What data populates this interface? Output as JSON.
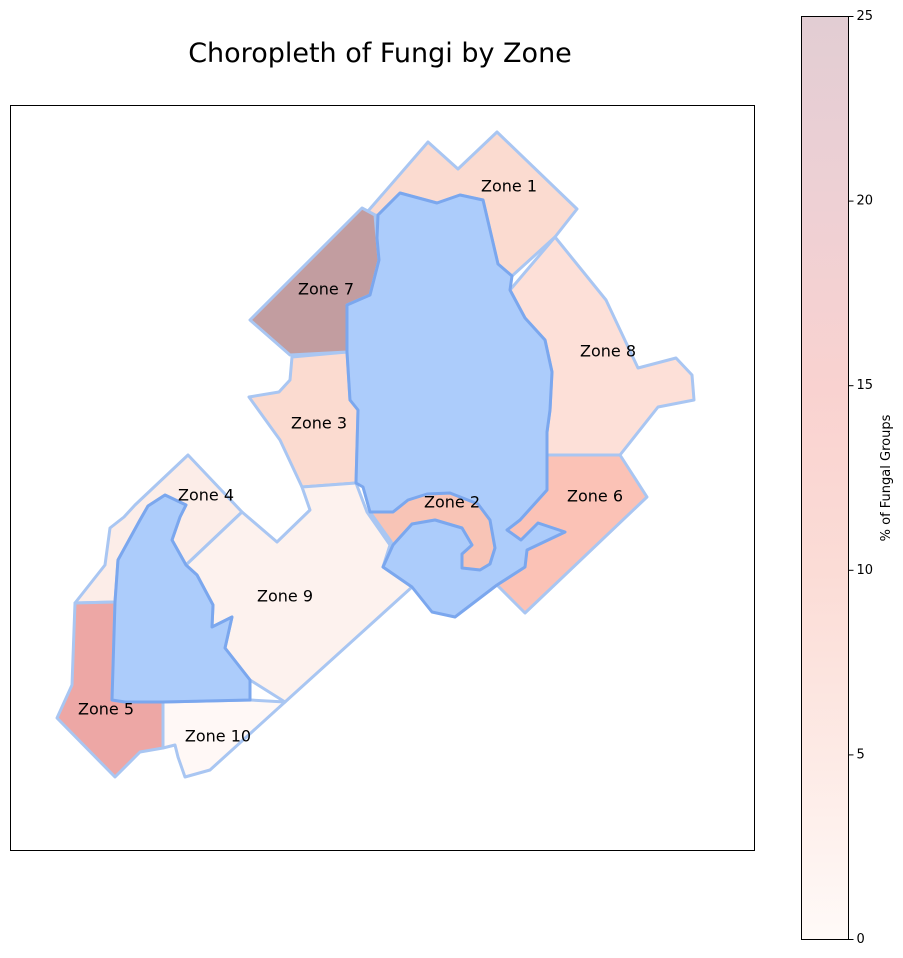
{
  "title": "Choropleth of Fungi by Zone",
  "chart_data": {
    "type": "choropleth",
    "title": "Choropleth of Fungi by Zone",
    "colorbar": {
      "label": "% of Fungal Groups",
      "range": [
        0,
        25
      ],
      "ticks": [
        0,
        5,
        10,
        15,
        20,
        25
      ],
      "colors": [
        "#fffaf8",
        "#fde9e4",
        "#fadcd6",
        "#f6cccf",
        "#ecd2d6",
        "#e2cdd3"
      ]
    },
    "zones": [
      {
        "name": "Zone 1",
        "value": 11,
        "color": "#fbdbd0"
      },
      {
        "name": "Zone 2",
        "value": 14,
        "color": "#f8c4b6"
      },
      {
        "name": "Zone 3",
        "value": 11,
        "color": "#fbdbd0"
      },
      {
        "name": "Zone 4",
        "value": 8,
        "color": "#fcede8"
      },
      {
        "name": "Zone 5",
        "value": 19,
        "color": "#eda7a5"
      },
      {
        "name": "Zone 6",
        "value": 14,
        "color": "#fbc2b6"
      },
      {
        "name": "Zone 7",
        "value": 24,
        "color": "#c29da0"
      },
      {
        "name": "Zone 8",
        "value": 10,
        "color": "#fde0d8"
      },
      {
        "name": "Zone 9",
        "value": 6,
        "color": "#fdf2ee"
      },
      {
        "name": "Zone 10",
        "value": 4,
        "color": "#fff8f6"
      }
    ],
    "water_color": "#acccfb",
    "border_color": "#a9c6f2"
  }
}
